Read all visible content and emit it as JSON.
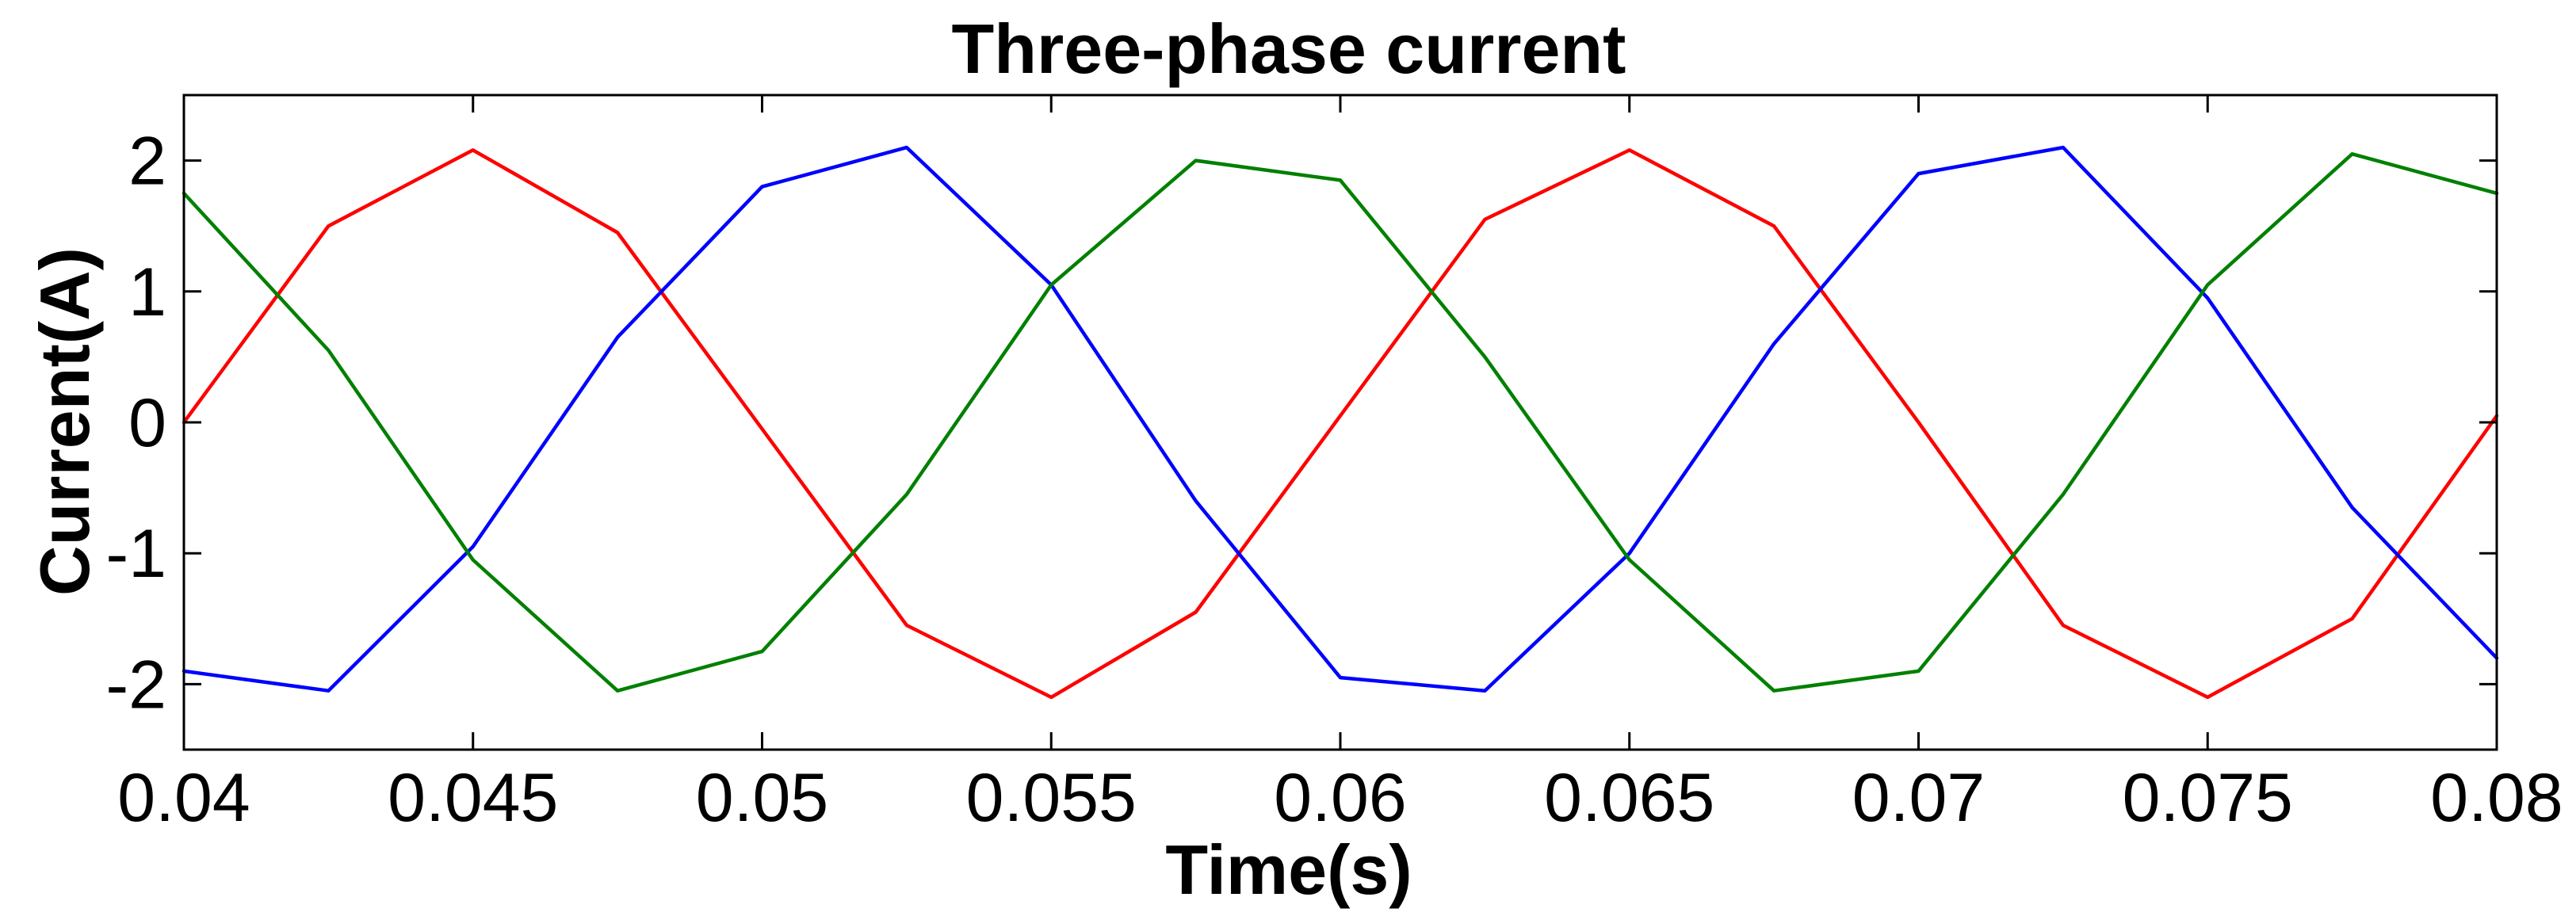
{
  "chart_data": {
    "type": "line",
    "title": "Three-phase current",
    "xlabel": "Time(s)",
    "ylabel": "Current(A)",
    "xlim": [
      0.04,
      0.08
    ],
    "ylim": [
      -2.5,
      2.5
    ],
    "grid": false,
    "legend": "none",
    "x_ticks": [
      0.04,
      0.045,
      0.05,
      0.055,
      0.06,
      0.065,
      0.07,
      0.075,
      0.08
    ],
    "x_tick_labels": [
      "0.04",
      "0.045",
      "0.05",
      "0.055",
      "0.06",
      "0.065",
      "0.07",
      "0.075",
      "0.08"
    ],
    "y_ticks": [
      -2,
      -1,
      0,
      1,
      2
    ],
    "y_tick_labels": [
      "-2",
      "-1",
      "0",
      "1",
      "2"
    ],
    "series": [
      {
        "color": "#ff0000",
        "x": [
          0.04,
          0.0425,
          0.045,
          0.0475,
          0.05,
          0.0525,
          0.055,
          0.0575,
          0.06,
          0.0625,
          0.065,
          0.0675,
          0.07,
          0.0725,
          0.075,
          0.0775,
          0.08
        ],
        "y": [
          0.0,
          1.5,
          2.08,
          1.45,
          -0.05,
          -1.55,
          -2.1,
          -1.45,
          0.05,
          1.55,
          2.08,
          1.5,
          0.0,
          -1.55,
          -2.1,
          -1.5,
          0.05
        ]
      },
      {
        "color": "#0000ff",
        "x": [
          0.04,
          0.0425,
          0.045,
          0.0475,
          0.05,
          0.0525,
          0.055,
          0.0575,
          0.06,
          0.0625,
          0.065,
          0.0675,
          0.07,
          0.0725,
          0.075,
          0.0775,
          0.08
        ],
        "y": [
          -1.9,
          -2.05,
          -0.95,
          0.65,
          1.8,
          2.1,
          1.05,
          -0.6,
          -1.95,
          -2.05,
          -1.0,
          0.6,
          1.9,
          2.1,
          0.95,
          -0.65,
          -1.8
        ]
      },
      {
        "color": "#008000",
        "x": [
          0.04,
          0.0425,
          0.045,
          0.0475,
          0.05,
          0.0525,
          0.055,
          0.0575,
          0.06,
          0.0625,
          0.065,
          0.0675,
          0.07,
          0.0725,
          0.075,
          0.0775,
          0.08
        ],
        "y": [
          1.75,
          0.55,
          -1.05,
          -2.05,
          -1.75,
          -0.55,
          1.05,
          2.0,
          1.85,
          0.5,
          -1.05,
          -2.05,
          -1.9,
          -0.55,
          1.05,
          2.05,
          1.75
        ]
      }
    ]
  }
}
